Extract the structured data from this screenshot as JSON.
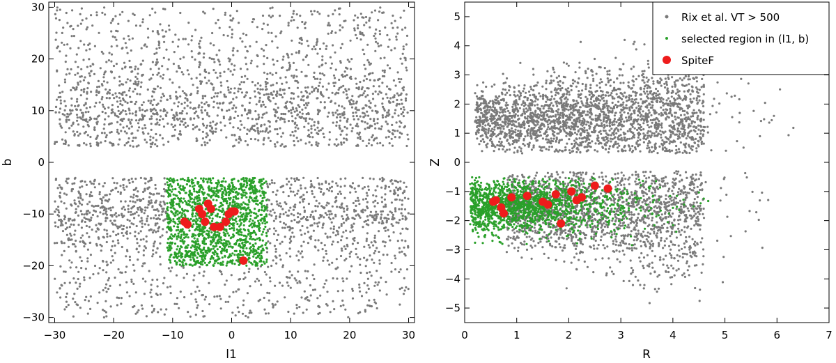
{
  "chart_data": [
    {
      "type": "scatter",
      "xlabel": "l1",
      "ylabel": "b",
      "xlim": [
        -31,
        31
      ],
      "ylim": [
        -31,
        31
      ],
      "xticks": [
        -30,
        -20,
        -10,
        0,
        10,
        20,
        30
      ],
      "yticks": [
        -30,
        -20,
        -10,
        0,
        10,
        20,
        30
      ],
      "xtick_labels": [
        "−30",
        "−20",
        "−10",
        "0",
        "10",
        "20",
        "30"
      ],
      "ytick_labels": [
        "−30",
        "−20",
        "−10",
        "0",
        "10",
        "20",
        "30"
      ],
      "grid": false,
      "series": [
        {
          "name": "Rix et al. VT > 500",
          "color": "#7a7a7a",
          "distribution": "band |b| 3–30, all l1, denser near b=±10"
        },
        {
          "name": "selected region in (l1, b)",
          "color": "#2aa02a",
          "box": {
            "l1": [
              -11,
              6
            ],
            "b": [
              -20,
              -3
            ]
          }
        },
        {
          "name": "SpiteF",
          "color": "#ee1c1c",
          "points": [
            [
              -8,
              -11.5
            ],
            [
              -7.5,
              -12
            ],
            [
              -5.5,
              -9
            ],
            [
              -5,
              -10
            ],
            [
              -4.5,
              -11.5
            ],
            [
              -4,
              -8
            ],
            [
              -3.5,
              -9
            ],
            [
              -3,
              -12.5
            ],
            [
              -2,
              -12.5
            ],
            [
              -1,
              -11.5
            ],
            [
              -0.5,
              -10
            ],
            [
              0,
              -9.5
            ],
            [
              0.5,
              -9.5
            ],
            [
              2,
              -19
            ]
          ]
        }
      ]
    },
    {
      "type": "scatter",
      "xlabel": "R",
      "ylabel": "Z",
      "xlim": [
        0,
        7
      ],
      "ylim": [
        -5.5,
        5.5
      ],
      "xticks": [
        0,
        1,
        2,
        3,
        4,
        5,
        6,
        7
      ],
      "yticks": [
        -5,
        -4,
        -3,
        -2,
        -1,
        0,
        1,
        2,
        3,
        4,
        5
      ],
      "xtick_labels": [
        "0",
        "1",
        "2",
        "3",
        "4",
        "5",
        "6",
        "7"
      ],
      "ytick_labels": [
        "−5",
        "−4",
        "−3",
        "−2",
        "−1",
        "0",
        "1",
        "2",
        "3",
        "4",
        "5"
      ],
      "grid": false,
      "legend_position": "top-right",
      "legend": [
        "Rix et al. VT > 500",
        "selected region in (l1, b)",
        "SpiteF"
      ],
      "series": [
        {
          "name": "Rix et al. VT > 500",
          "color": "#7a7a7a",
          "distribution": "two clouds near Z=+1.5 and Z=-1.5, R 0–5, sparse to R≈7"
        },
        {
          "name": "selected region in (l1, b)",
          "color": "#2aa02a",
          "distribution": "Z -3 to -0.5, R 0.1–4.8, densest at R<2"
        },
        {
          "name": "SpiteF",
          "color": "#ee1c1c",
          "points": [
            [
              0.55,
              -1.35
            ],
            [
              0.6,
              -1.3
            ],
            [
              0.7,
              -1.55
            ],
            [
              0.75,
              -1.75
            ],
            [
              0.9,
              -1.2
            ],
            [
              1.2,
              -1.15
            ],
            [
              1.5,
              -1.35
            ],
            [
              1.6,
              -1.45
            ],
            [
              1.75,
              -1.1
            ],
            [
              1.85,
              -2.1
            ],
            [
              2.05,
              -1.0
            ],
            [
              2.15,
              -1.3
            ],
            [
              2.25,
              -1.2
            ],
            [
              2.5,
              -0.8
            ],
            [
              2.75,
              -0.9
            ]
          ]
        }
      ]
    }
  ]
}
